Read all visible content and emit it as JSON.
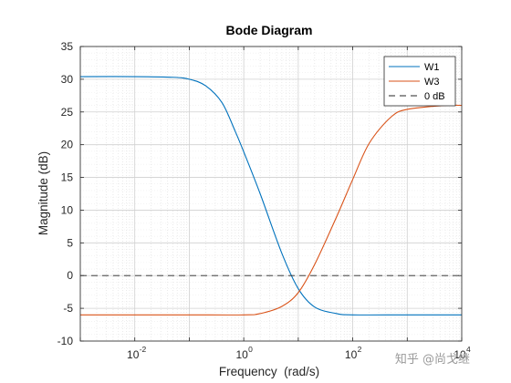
{
  "chart_data": {
    "type": "line",
    "title": "Bode Diagram",
    "xlabel": "Frequency  (rad/s)",
    "ylabel": "Magnitude (dB)",
    "xscale": "log",
    "xlim": [
      0.001,
      10000
    ],
    "ylim": [
      -10,
      35
    ],
    "x_ticks": [
      {
        "value": 0.01,
        "base": "10",
        "exp": "-2"
      },
      {
        "value": 1,
        "base": "10",
        "exp": "0"
      },
      {
        "value": 100,
        "base": "10",
        "exp": "2"
      },
      {
        "value": 10000,
        "base": "10",
        "exp": "4"
      }
    ],
    "y_ticks": [
      "-10",
      "-5",
      "0",
      "5",
      "10",
      "15",
      "20",
      "25",
      "30",
      "35"
    ],
    "grid": true,
    "legend_position": "top-right",
    "series": [
      {
        "name": "W1",
        "color": "#0072bd",
        "x": [
          0.001,
          0.01,
          0.05,
          0.1,
          0.2,
          0.4,
          0.7,
          1,
          2,
          5,
          10,
          20,
          50,
          100,
          1000,
          10000
        ],
        "y": [
          30.4,
          30.4,
          30.3,
          30.0,
          29.0,
          26.4,
          22.0,
          18.9,
          12.5,
          3.4,
          -2.0,
          -4.8,
          -5.8,
          -6.0,
          -6.0,
          -6.0
        ]
      },
      {
        "name": "W3",
        "color": "#d95319",
        "x": [
          0.001,
          0.01,
          0.1,
          1,
          2,
          5,
          10,
          20,
          50,
          100,
          200,
          500,
          1000,
          5000,
          10000
        ],
        "y": [
          -6.0,
          -6.0,
          -6.0,
          -6.0,
          -5.8,
          -4.7,
          -2.6,
          1.7,
          8.9,
          14.7,
          20.2,
          24.2,
          25.4,
          26.0,
          26.0
        ]
      },
      {
        "name": "0 dB",
        "color": "#262626",
        "dash": true,
        "x": [
          0.001,
          10000
        ],
        "y": [
          0,
          0
        ]
      }
    ]
  },
  "watermark": "知乎 @尚戈继"
}
